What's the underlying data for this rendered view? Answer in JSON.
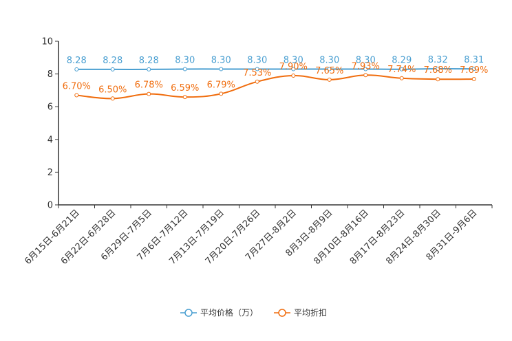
{
  "chart_data": {
    "type": "line",
    "categories": [
      "6月15日-6月21日",
      "6月22日-6月28日",
      "6月29日-7月5日",
      "7月6日-7月12日",
      "7月13日-7月19日",
      "7月20日-7月26日",
      "7月27日-8月2日",
      "8月3日-8月9日",
      "8月10日-8月16日",
      "8月17日-8月23日",
      "8月24日-8月30日",
      "8月31日-9月6日"
    ],
    "ylim": [
      0,
      10
    ],
    "yticks": [
      0,
      2,
      4,
      6,
      8,
      10
    ],
    "series": [
      {
        "name": "平均价格（万）",
        "color": "#4a9fd1",
        "values": [
          8.28,
          8.28,
          8.28,
          8.3,
          8.3,
          8.3,
          8.3,
          8.3,
          8.3,
          8.29,
          8.32,
          8.31
        ],
        "labels": [
          "8.28",
          "8.28",
          "8.28",
          "8.30",
          "8.30",
          "8.30",
          "8.30",
          "8.30",
          "8.30",
          "8.29",
          "8.32",
          "8.31"
        ]
      },
      {
        "name": "平均折扣",
        "color": "#f06d0e",
        "values": [
          6.7,
          6.5,
          6.78,
          6.59,
          6.79,
          7.53,
          7.9,
          7.65,
          7.93,
          7.74,
          7.68,
          7.69
        ],
        "labels": [
          "6.70%",
          "6.50%",
          "6.78%",
          "6.59%",
          "6.79%",
          "7.53%",
          "7.90%",
          "7.65%",
          "7.93%",
          "7.74%",
          "7.68%",
          "7.69%"
        ]
      }
    ],
    "title": "",
    "xlabel": "",
    "ylabel": "",
    "legend_position": "bottom-center"
  }
}
